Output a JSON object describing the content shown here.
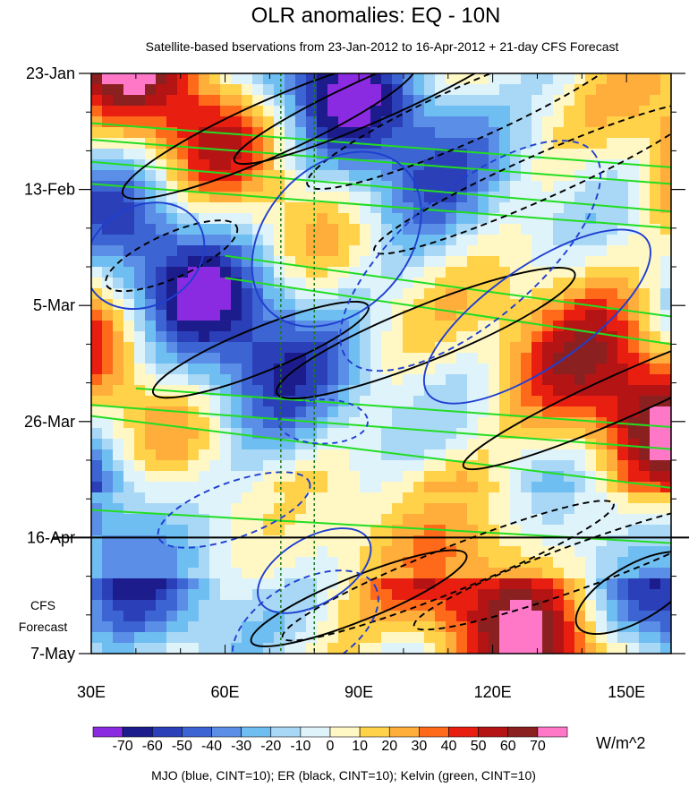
{
  "chart_data": {
    "type": "heatmap",
    "title": "OLR anomalies: EQ - 10N",
    "subtitle": "Satellite-based bservations from 23-Jan-2012 to 16-Apr-2012 + 21-day CFS Forecast",
    "x_ticks": [
      {
        "value": 30,
        "label": "30E"
      },
      {
        "value": 60,
        "label": "60E"
      },
      {
        "value": 90,
        "label": "90E"
      },
      {
        "value": 120,
        "label": "120E"
      },
      {
        "value": 150,
        "label": "150E"
      }
    ],
    "xlim": [
      30,
      160
    ],
    "y_ticks": [
      {
        "value": 0,
        "label": "23-Jan"
      },
      {
        "value": 21,
        "label": "13-Feb"
      },
      {
        "value": 42,
        "label": "5-Mar"
      },
      {
        "value": 63,
        "label": "26-Mar"
      },
      {
        "value": 84,
        "label": "16-Apr"
      },
      {
        "value": 105,
        "label": "7-May"
      }
    ],
    "ylim": [
      0,
      105
    ],
    "forecast_start": 84,
    "forecast_label": [
      "CFS",
      "Forecast"
    ],
    "reference_lines_x": [
      72.5,
      80
    ],
    "colorbar": {
      "unit": "W/m^2",
      "labels": [
        "-70",
        "-60",
        "-50",
        "-40",
        "-30",
        "-20",
        "-10",
        "0",
        "10",
        "20",
        "30",
        "40",
        "50",
        "60",
        "70"
      ],
      "colors": [
        "#8a2be2",
        "#1c1c8c",
        "#2a3fb8",
        "#3c64d2",
        "#5b8ee6",
        "#6fbef2",
        "#a8d8f5",
        "#dff3fb",
        "#fff8c4",
        "#ffd24a",
        "#ffae3c",
        "#ff6a1a",
        "#e81e10",
        "#b51414",
        "#8a2020",
        "#ff78c8"
      ]
    },
    "contour_legend": "MJO (blue, CINT=10); ER (black, CINT=10); Kelvin (green, CINT=10)"
  }
}
